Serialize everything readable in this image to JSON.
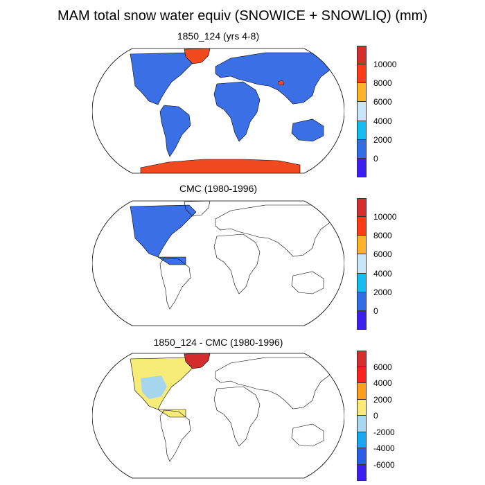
{
  "title": "MAM total snow water equiv (SNOWICE + SNOWLIQ) (mm)",
  "panels": [
    {
      "title": "1850_124 (yrs 4-8)",
      "colorbar": {
        "labels": [
          "10000",
          "8000",
          "6000",
          "4000",
          "2000",
          "0"
        ],
        "colors": [
          "#d62d2d",
          "#ff3a16",
          "#ffb428",
          "#c8e6f5",
          "#14bef0",
          "#2e6ee6",
          "#3c1ef0"
        ]
      },
      "fill": "#3a6fe6",
      "antarctica_fill": "#f04a1e"
    },
    {
      "title": "CMC (1980-1996)",
      "colorbar": {
        "labels": [
          "10000",
          "8000",
          "6000",
          "4000",
          "2000",
          "0"
        ],
        "colors": [
          "#d62d2d",
          "#ff3a16",
          "#ffb428",
          "#c8e6f5",
          "#14bef0",
          "#2e6ee6",
          "#3c1ef0"
        ]
      },
      "fill": "#3a6fe6"
    },
    {
      "title": "1850_124 - CMC (1980-1996)",
      "colorbar": {
        "labels": [
          "6000",
          "4000",
          "2000",
          "0",
          "-2000",
          "-4000",
          "-6000"
        ],
        "colors": [
          "#d62d2d",
          "#ff2020",
          "#ff9f1c",
          "#fde97a",
          "#a8d8f0",
          "#16a8f0",
          "#2a5ee8",
          "#3c1ef0"
        ]
      },
      "fill": "#f8ec78",
      "greenland_fill": "#d42c2c",
      "blue_fill": "#a6d6ee"
    }
  ]
}
